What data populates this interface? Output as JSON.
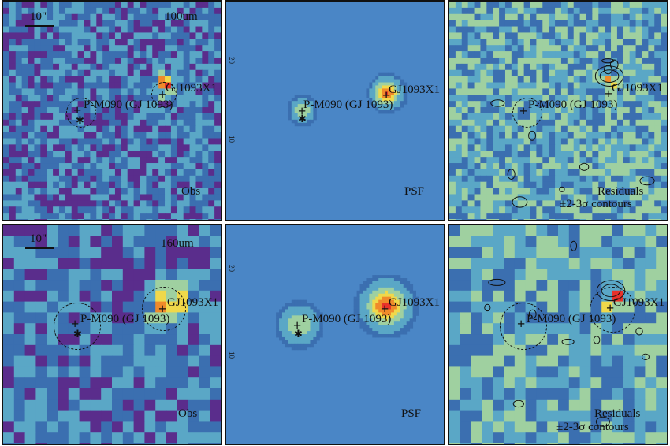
{
  "colors": {
    "low": "#5a2d8c",
    "mid1": "#3b6fb0",
    "mid2": "#5aa7c6",
    "mid3": "#9fd0a0",
    "high1": "#f0d84a",
    "high2": "#f08a2a",
    "peak": "#e8312a",
    "psf_bg": "#4a86c6"
  },
  "rows": [
    {
      "band_label": "100um",
      "scale_label": "10\"",
      "panels": [
        {
          "kind": "obs",
          "corner_label": "Obs",
          "source_a": "P-M090 (GJ 1093)",
          "source_b": "GJ1093X1"
        },
        {
          "kind": "psf",
          "corner_label": "PSF",
          "source_a": "P-M090 (GJ 1093)",
          "source_b": "GJ1093X1"
        },
        {
          "kind": "res",
          "corner_label": "Residuals",
          "corner_sub": "±2-3σ contours",
          "source_a": "P-M090 (GJ 1093)",
          "source_b": "GJ1093X1"
        }
      ],
      "axis_ticks": [
        "20",
        "10"
      ]
    },
    {
      "band_label": "160um",
      "scale_label": "10\"",
      "panels": [
        {
          "kind": "obs",
          "corner_label": "Obs",
          "source_a": "P-M090 (GJ 1093)",
          "source_b": "GJ1093X1"
        },
        {
          "kind": "psf",
          "corner_label": "PSF",
          "source_a": "P-M090 (GJ 1093)",
          "source_b": "GJ1093X1"
        },
        {
          "kind": "res",
          "corner_label": "Residuals",
          "corner_sub": "±2-3σ contours",
          "source_a": "P-M090 (GJ 1093)",
          "source_b": "GJ1093X1"
        }
      ],
      "axis_ticks": [
        "20",
        "10"
      ]
    }
  ]
}
